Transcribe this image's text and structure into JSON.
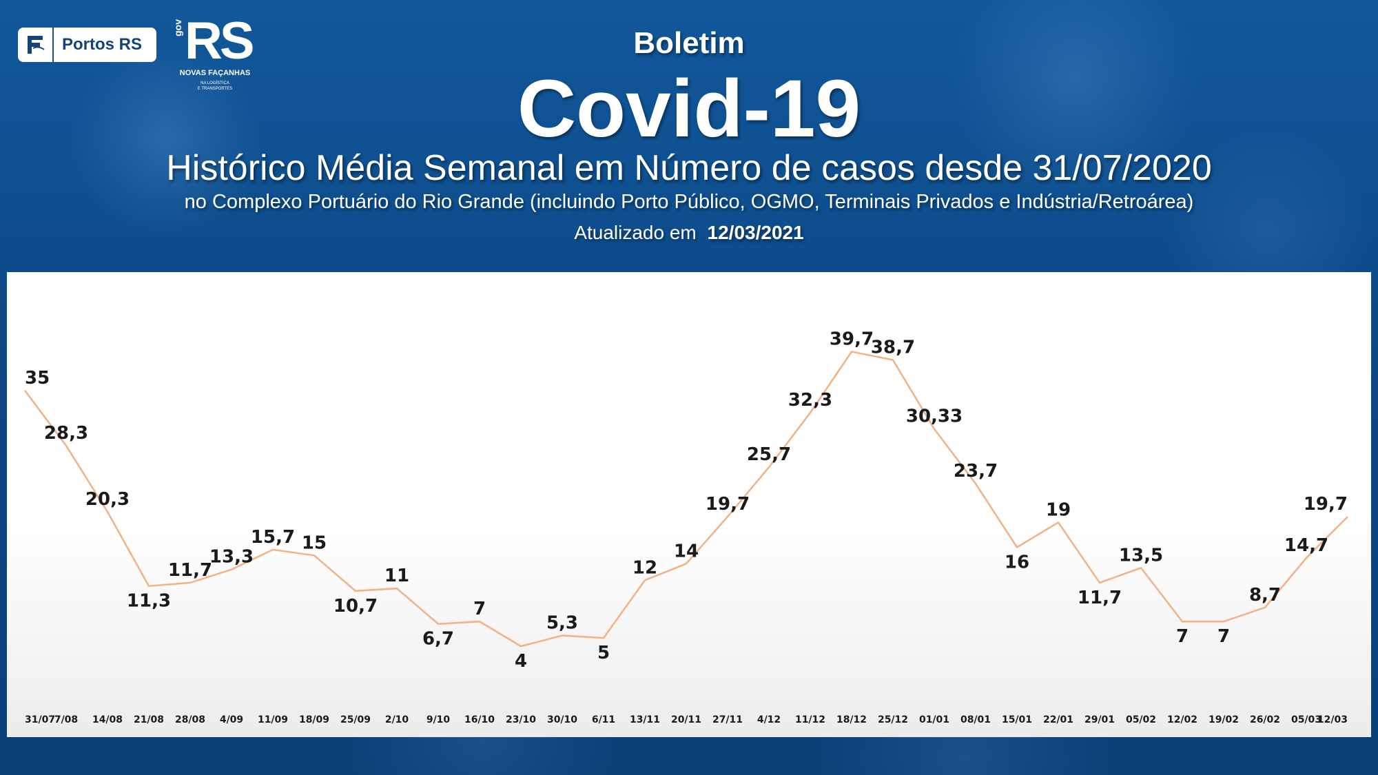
{
  "logos": {
    "portos_text": "Portos RS",
    "gov_text": "gov",
    "rs_text": "RS",
    "novas_facanhas": "NOVAS FAÇANHAS",
    "rs_sub": "NA LOGÍSTICA\nE TRANSPORTES"
  },
  "header": {
    "boletim": "Boletim",
    "covid": "Covid-19",
    "historico": "Histórico Média Semanal em Número de casos desde 31/07/2020",
    "subtitle": "no Complexo Portuário do Rio Grande (incluindo Porto Público, OGMO, Terminais Privados e Indústria/Retroárea)",
    "updated_label": "Atualizado em",
    "updated_date": "12/03/2021"
  },
  "chart_data": {
    "type": "line",
    "categories": [
      "31/07",
      "7/08",
      "14/08",
      "21/08",
      "28/08",
      "4/09",
      "11/09",
      "18/09",
      "25/09",
      "2/10",
      "9/10",
      "16/10",
      "23/10",
      "30/10",
      "6/11",
      "13/11",
      "20/11",
      "27/11",
      "4/12",
      "11/12",
      "18/12",
      "25/12",
      "01/01",
      "08/01",
      "15/01",
      "22/01",
      "29/01",
      "05/02",
      "12/02",
      "19/02",
      "26/02",
      "05/03",
      "12/03"
    ],
    "values": [
      35,
      28.3,
      20.3,
      11.3,
      11.7,
      13.3,
      15.7,
      15,
      10.7,
      11,
      6.7,
      7,
      4,
      5.3,
      5,
      12,
      14,
      19.7,
      25.7,
      32.3,
      39.7,
      38.7,
      30.33,
      23.7,
      16,
      19,
      11.7,
      13.5,
      7,
      7,
      8.7,
      14.7,
      19.7
    ],
    "labels": [
      "35",
      "28,3",
      "20,3",
      "11,3",
      "11,7",
      "13,3",
      "15,7",
      "15",
      "10,7",
      "11",
      "6,7",
      "7",
      "4",
      "5,3",
      "5",
      "12",
      "14",
      "19,7",
      "25,7",
      "32,3",
      "39,7",
      "38,7",
      "30,33",
      "23,7",
      "16",
      "19",
      "11,7",
      "13,5",
      "7",
      "7",
      "8,7",
      "14,7",
      "19,7"
    ],
    "title": "",
    "xlabel": "",
    "ylabel": "",
    "ylim": [
      0,
      45
    ],
    "grid": false,
    "line_color": "#f4b183",
    "label_color": "#1a1a1a"
  }
}
